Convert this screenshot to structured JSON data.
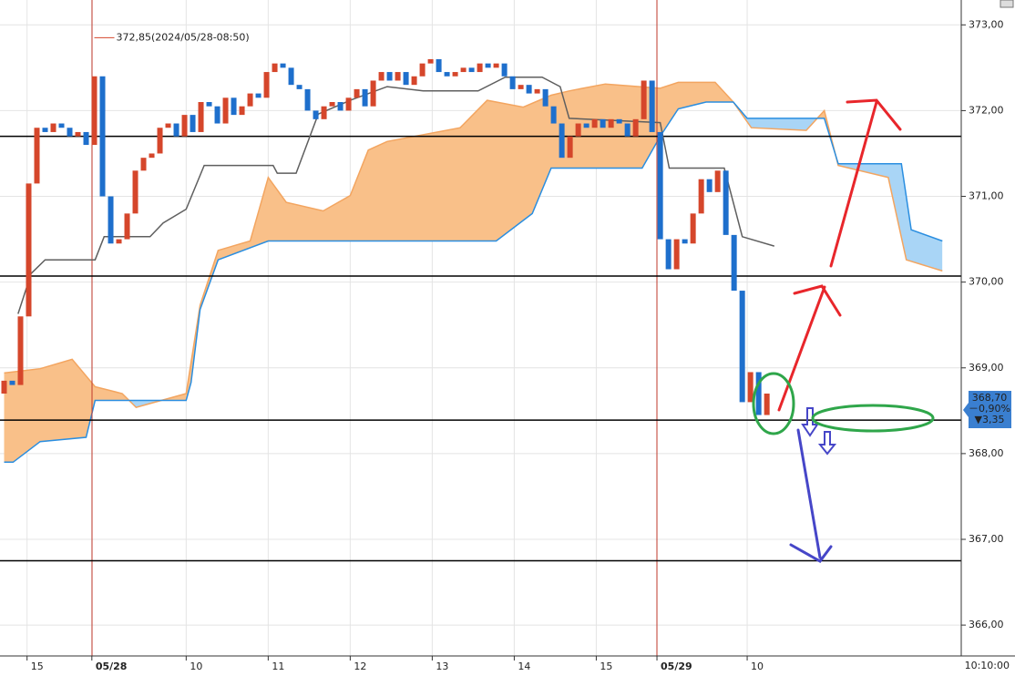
{
  "chart_data": {
    "type": "candlestick",
    "xlim": [
      -0.5,
      116.7
    ],
    "ylim": [
      365.64,
      373.29
    ],
    "yticks": [
      {
        "value": 373,
        "label": "373,00"
      },
      {
        "value": 372,
        "label": "372,00"
      },
      {
        "value": 371,
        "label": "371,00"
      },
      {
        "value": 370,
        "label": "370,00"
      },
      {
        "value": 369,
        "label": "369,00"
      },
      {
        "value": 368,
        "label": "368,00"
      },
      {
        "value": 367,
        "label": "367,00"
      },
      {
        "value": 366,
        "label": "366,00"
      }
    ],
    "xticks": [
      {
        "value": 2.8,
        "label": "15"
      },
      {
        "value": 10.7,
        "label": "05/28"
      },
      {
        "value": 22.2,
        "label": "10"
      },
      {
        "value": 32.2,
        "label": "11"
      },
      {
        "value": 42.2,
        "label": "12"
      },
      {
        "value": 52.2,
        "label": "13"
      },
      {
        "value": 62.2,
        "label": "14"
      },
      {
        "value": 72.2,
        "label": "15"
      },
      {
        "value": 79.6,
        "label": "05/29"
      },
      {
        "value": 90.6,
        "label": "10"
      }
    ],
    "time_label": "10:10:00",
    "grid": true,
    "candles": {
      "up_color": "#d5462b",
      "down_color": "#1e6fcc",
      "open": [
        368.7,
        368.85,
        368.8,
        369.6,
        371.15,
        371.8,
        371.75,
        371.85,
        371.8,
        371.7,
        371.75,
        371.6,
        372.4,
        371.0,
        370.45,
        370.5,
        370.8,
        371.3,
        371.45,
        371.5,
        371.8,
        371.85,
        371.7,
        371.95,
        371.75,
        372.1,
        372.05,
        371.85,
        372.15,
        371.95,
        372.05,
        372.2,
        372.15,
        372.45,
        372.55,
        372.5,
        372.3,
        372.25,
        372.0,
        371.9,
        372.05,
        372.1,
        372.0,
        372.15,
        372.25,
        372.05,
        372.35,
        372.45,
        372.35,
        372.45,
        372.3,
        372.4,
        372.55,
        372.6,
        372.45,
        372.4,
        372.45,
        372.5,
        372.45,
        372.55,
        372.5,
        372.55,
        372.4,
        372.25,
        372.3,
        372.2,
        372.25,
        372.05,
        371.85,
        371.45,
        371.7,
        371.85,
        371.8,
        371.9,
        371.8,
        371.9,
        371.85,
        371.7,
        371.9,
        372.35,
        371.75,
        370.5,
        370.15,
        370.5,
        370.45,
        370.8,
        371.2,
        371.05,
        371.3,
        370.55,
        369.9,
        368.6,
        368.95,
        368.45
      ],
      "close": [
        368.85,
        368.8,
        369.6,
        371.15,
        371.8,
        371.75,
        371.85,
        371.8,
        371.7,
        371.75,
        371.6,
        372.4,
        371.0,
        370.45,
        370.5,
        370.8,
        371.3,
        371.45,
        371.5,
        371.8,
        371.85,
        371.7,
        371.95,
        371.75,
        372.1,
        372.05,
        371.85,
        372.15,
        371.95,
        372.05,
        372.2,
        372.15,
        372.45,
        372.55,
        372.5,
        372.3,
        372.25,
        372.0,
        371.9,
        372.05,
        372.1,
        372.0,
        372.15,
        372.25,
        372.05,
        372.35,
        372.45,
        372.35,
        372.45,
        372.3,
        372.4,
        372.55,
        372.6,
        372.45,
        372.4,
        372.45,
        372.5,
        372.45,
        372.55,
        372.5,
        372.55,
        372.4,
        372.25,
        372.3,
        372.2,
        372.25,
        372.05,
        371.85,
        371.45,
        371.7,
        371.85,
        371.8,
        371.9,
        371.8,
        371.9,
        371.85,
        371.7,
        371.9,
        372.35,
        371.75,
        370.5,
        370.15,
        370.5,
        370.45,
        370.8,
        371.2,
        371.05,
        371.3,
        370.55,
        369.9,
        368.6,
        368.95,
        368.45,
        368.7
      ]
    },
    "annotation": {
      "index": 11,
      "value": 372.85,
      "label": "372,85(2024/05/28-08:50)",
      "color": "#d5462b"
    },
    "cloud": {
      "up_color": "#f9c089",
      "down_color": "#a9d5f6",
      "span_a": {
        "color": "#f3a560",
        "x": [
          0,
          4.4,
          8.3,
          11.1,
          14.4,
          16.1,
          22.2,
          23.9,
          26.1,
          30,
          32.2,
          34.4,
          38.9,
          42.2,
          44.4,
          46.7,
          55.6,
          58.9,
          63.3,
          66.7,
          68.9,
          73.3,
          80,
          82.2,
          86.7,
          88.9,
          91.1,
          97.8,
          100,
          101.7,
          107.8,
          110,
          114.4
        ],
        "values": [
          368.94,
          368.99,
          369.1,
          368.78,
          368.7,
          368.54,
          368.7,
          369.73,
          370.37,
          370.48,
          371.22,
          370.93,
          370.83,
          371.01,
          371.54,
          371.64,
          371.8,
          372.12,
          372.04,
          372.18,
          372.23,
          372.31,
          372.26,
          372.33,
          372.33,
          372.1,
          371.8,
          371.77,
          372.0,
          371.36,
          371.22,
          370.26,
          370.13
        ]
      },
      "span_b": {
        "color": "#2a8ee0",
        "x": [
          0,
          1.1,
          4.4,
          10,
          11.1,
          14.4,
          22.2,
          22.8,
          23.9,
          26.1,
          32.2,
          60,
          64.4,
          66.7,
          77.8,
          80,
          82.2,
          85.6,
          88.9,
          90.6,
          100,
          101.7,
          109.4,
          110.6,
          114.4
        ],
        "values": [
          367.9,
          367.9,
          368.14,
          368.19,
          368.62,
          368.62,
          368.62,
          368.83,
          369.68,
          370.26,
          370.48,
          370.48,
          370.8,
          371.33,
          371.33,
          371.7,
          372.02,
          372.1,
          372.1,
          371.91,
          371.91,
          371.38,
          371.38,
          370.61,
          370.48
        ]
      }
    },
    "lines": [
      {
        "color": "#5f5f5f",
        "x": [
          1.7,
          3.3,
          5,
          11.1,
          12.2,
          17.8,
          19.4,
          22.2,
          24.4,
          32.8,
          33.3,
          35.6,
          38.3,
          42.2,
          46.7,
          51.1,
          57.8,
          61.1,
          65.6,
          67.8,
          68.9,
          80,
          81.1,
          87.8,
          90,
          93.9
        ],
        "values": [
          369.63,
          370.1,
          370.26,
          370.26,
          370.53,
          370.53,
          370.69,
          370.85,
          371.36,
          371.36,
          371.27,
          371.27,
          371.96,
          372.12,
          372.28,
          372.23,
          372.23,
          372.39,
          372.39,
          372.28,
          371.91,
          371.86,
          371.33,
          371.33,
          370.53,
          370.42
        ]
      }
    ],
    "levels": [
      371.7,
      370.07,
      368.39,
      366.75
    ],
    "price_box": {
      "value": 368.7,
      "label": "368,70",
      "change": "－0,90%",
      "diff": "▼3,35",
      "color": "#3a7fd0"
    }
  }
}
